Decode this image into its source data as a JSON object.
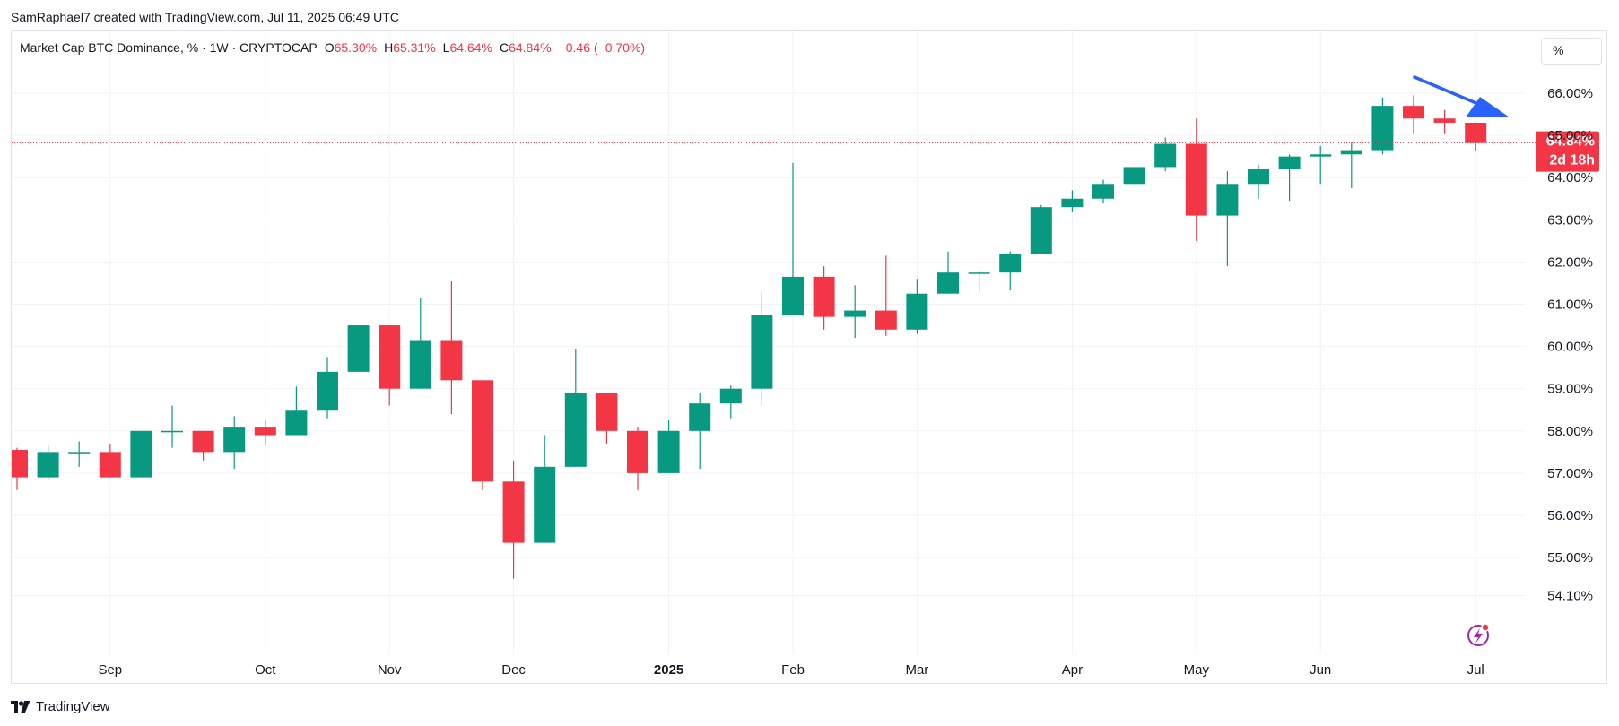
{
  "caption": "SamRaphael7 created with TradingView.com, Jul 11, 2025 06:49 UTC",
  "legend": {
    "title": "Market Cap BTC Dominance, % · 1W · CRYPTOCAP",
    "o_label": "O",
    "o_value": "65.30%",
    "h_label": "H",
    "h_value": "65.31%",
    "l_label": "L",
    "l_value": "64.64%",
    "c_label": "C",
    "c_value": "64.84%",
    "change": "−0.46 (−0.70%)"
  },
  "scale_button": "%",
  "footer": {
    "brand": "TradingView"
  },
  "colors": {
    "up": "#089981",
    "down": "#f23645",
    "grid": "#f0f3fa",
    "arrow": "#2962ff"
  },
  "chart_data": {
    "type": "candlestick",
    "y_axis": {
      "side": "right",
      "ticks": [
        "66.00%",
        "65.00%",
        "64.00%",
        "63.00%",
        "62.00%",
        "61.00%",
        "60.00%",
        "59.00%",
        "58.00%",
        "57.00%",
        "56.00%",
        "55.00%",
        "54.10%"
      ]
    },
    "x_axis": {
      "ticks": [
        {
          "label": "Sep",
          "index": 3
        },
        {
          "label": "Oct",
          "index": 8
        },
        {
          "label": "Nov",
          "index": 12
        },
        {
          "label": "Dec",
          "index": 16
        },
        {
          "label": "2025",
          "index": 21,
          "bold": true
        },
        {
          "label": "Feb",
          "index": 25
        },
        {
          "label": "Mar",
          "index": 29
        },
        {
          "label": "Apr",
          "index": 34
        },
        {
          "label": "May",
          "index": 38
        },
        {
          "label": "Jun",
          "index": 42
        },
        {
          "label": "Jul",
          "index": 47
        }
      ]
    },
    "current_price": {
      "value": 64.84,
      "label": "64.84%",
      "countdown": "2d 18h"
    },
    "candles": [
      {
        "o": 57.55,
        "h": 57.6,
        "l": 56.6,
        "c": 56.9
      },
      {
        "o": 56.9,
        "h": 57.65,
        "l": 56.85,
        "c": 57.5
      },
      {
        "o": 57.5,
        "h": 57.75,
        "l": 57.15,
        "c": 57.5
      },
      {
        "o": 57.5,
        "h": 57.7,
        "l": 56.9,
        "c": 56.9
      },
      {
        "o": 56.9,
        "h": 58.0,
        "l": 56.9,
        "c": 58.0
      },
      {
        "o": 58.0,
        "h": 58.6,
        "l": 57.6,
        "c": 58.0
      },
      {
        "o": 58.0,
        "h": 58.0,
        "l": 57.3,
        "c": 57.5
      },
      {
        "o": 57.5,
        "h": 58.35,
        "l": 57.1,
        "c": 58.1
      },
      {
        "o": 58.1,
        "h": 58.25,
        "l": 57.65,
        "c": 57.9
      },
      {
        "o": 57.9,
        "h": 59.05,
        "l": 57.9,
        "c": 58.5
      },
      {
        "o": 58.5,
        "h": 59.75,
        "l": 58.3,
        "c": 59.4
      },
      {
        "o": 59.4,
        "h": 60.5,
        "l": 59.4,
        "c": 60.5
      },
      {
        "o": 60.5,
        "h": 60.5,
        "l": 58.6,
        "c": 59.0
      },
      {
        "o": 59.0,
        "h": 61.15,
        "l": 59.0,
        "c": 60.15
      },
      {
        "o": 60.15,
        "h": 61.55,
        "l": 58.4,
        "c": 59.2
      },
      {
        "o": 59.2,
        "h": 59.2,
        "l": 56.6,
        "c": 56.8
      },
      {
        "o": 56.8,
        "h": 57.3,
        "l": 54.5,
        "c": 55.35
      },
      {
        "o": 55.35,
        "h": 57.9,
        "l": 55.35,
        "c": 57.15
      },
      {
        "o": 57.15,
        "h": 59.95,
        "l": 57.15,
        "c": 58.9
      },
      {
        "o": 58.9,
        "h": 58.9,
        "l": 57.7,
        "c": 58.0
      },
      {
        "o": 58.0,
        "h": 58.1,
        "l": 56.6,
        "c": 57.0
      },
      {
        "o": 57.0,
        "h": 58.25,
        "l": 57.0,
        "c": 58.0
      },
      {
        "o": 58.0,
        "h": 58.9,
        "l": 57.1,
        "c": 58.65
      },
      {
        "o": 58.65,
        "h": 59.1,
        "l": 58.3,
        "c": 59.0
      },
      {
        "o": 59.0,
        "h": 61.3,
        "l": 58.6,
        "c": 60.75
      },
      {
        "o": 60.75,
        "h": 64.35,
        "l": 60.75,
        "c": 61.65
      },
      {
        "o": 61.65,
        "h": 61.9,
        "l": 60.4,
        "c": 60.7
      },
      {
        "o": 60.7,
        "h": 61.45,
        "l": 60.2,
        "c": 60.85
      },
      {
        "o": 60.85,
        "h": 62.15,
        "l": 60.25,
        "c": 60.4
      },
      {
        "o": 60.4,
        "h": 61.6,
        "l": 60.3,
        "c": 61.25
      },
      {
        "o": 61.25,
        "h": 62.25,
        "l": 61.25,
        "c": 61.75
      },
      {
        "o": 61.75,
        "h": 61.8,
        "l": 61.3,
        "c": 61.75
      },
      {
        "o": 61.75,
        "h": 62.25,
        "l": 61.35,
        "c": 62.2
      },
      {
        "o": 62.2,
        "h": 63.35,
        "l": 62.2,
        "c": 63.3
      },
      {
        "o": 63.3,
        "h": 63.7,
        "l": 63.2,
        "c": 63.5
      },
      {
        "o": 63.5,
        "h": 63.95,
        "l": 63.4,
        "c": 63.85
      },
      {
        "o": 63.85,
        "h": 64.25,
        "l": 63.85,
        "c": 64.25
      },
      {
        "o": 64.25,
        "h": 64.95,
        "l": 64.15,
        "c": 64.8
      },
      {
        "o": 64.8,
        "h": 65.4,
        "l": 62.5,
        "c": 63.1
      },
      {
        "o": 63.1,
        "h": 64.15,
        "l": 61.9,
        "c": 63.85
      },
      {
        "o": 63.85,
        "h": 64.3,
        "l": 63.5,
        "c": 64.2
      },
      {
        "o": 64.2,
        "h": 64.55,
        "l": 63.45,
        "c": 64.5
      },
      {
        "o": 64.5,
        "h": 64.75,
        "l": 63.85,
        "c": 64.55
      },
      {
        "o": 64.55,
        "h": 64.85,
        "l": 63.75,
        "c": 64.65
      },
      {
        "o": 64.65,
        "h": 65.9,
        "l": 64.55,
        "c": 65.7
      },
      {
        "o": 65.7,
        "h": 65.95,
        "l": 65.05,
        "c": 65.4
      },
      {
        "o": 65.4,
        "h": 65.6,
        "l": 65.05,
        "c": 65.3
      },
      {
        "o": 65.3,
        "h": 65.31,
        "l": 64.64,
        "c": 64.84
      }
    ]
  }
}
